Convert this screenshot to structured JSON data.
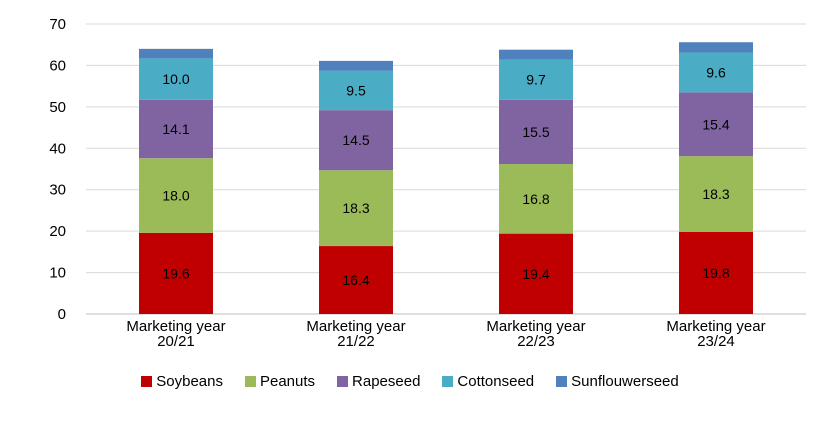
{
  "chart_data": {
    "type": "bar",
    "stacked": true,
    "categories": [
      [
        "Marketing year",
        "20/21"
      ],
      [
        "Marketing year",
        "21/22"
      ],
      [
        "Marketing year",
        "22/23"
      ],
      [
        "Marketing year",
        "23/24"
      ]
    ],
    "series": [
      {
        "name": "Soybeans",
        "color": "#c00000",
        "values": [
          19.6,
          16.4,
          19.4,
          19.8
        ],
        "labels": [
          "19.6",
          "16.4",
          "19.4",
          "19.8"
        ]
      },
      {
        "name": "Peanuts",
        "color": "#9bbb59",
        "values": [
          18.0,
          18.3,
          16.8,
          18.3
        ],
        "labels": [
          "18.0",
          "18.3",
          "16.8",
          "18.3"
        ]
      },
      {
        "name": "Rapeseed",
        "color": "#8064a2",
        "values": [
          14.1,
          14.5,
          15.5,
          15.4
        ],
        "labels": [
          "14.1",
          "14.5",
          "15.5",
          "15.4"
        ]
      },
      {
        "name": "Cottonseed",
        "color": "#4bacc6",
        "values": [
          10.0,
          9.5,
          9.7,
          9.6
        ],
        "labels": [
          "10.0",
          "9.5",
          "9.7",
          "9.6"
        ]
      },
      {
        "name": "Sunflouwerseed",
        "color": "#4f81bd",
        "values": [
          2.3,
          2.4,
          2.4,
          2.5
        ],
        "labels": [
          "",
          "",
          "",
          ""
        ]
      }
    ],
    "ylim": [
      0,
      70
    ],
    "yticks": [
      0,
      10,
      20,
      30,
      40,
      50,
      60,
      70
    ],
    "grid": true,
    "legend_position": "bottom",
    "title": "",
    "xlabel": "",
    "ylabel": ""
  }
}
